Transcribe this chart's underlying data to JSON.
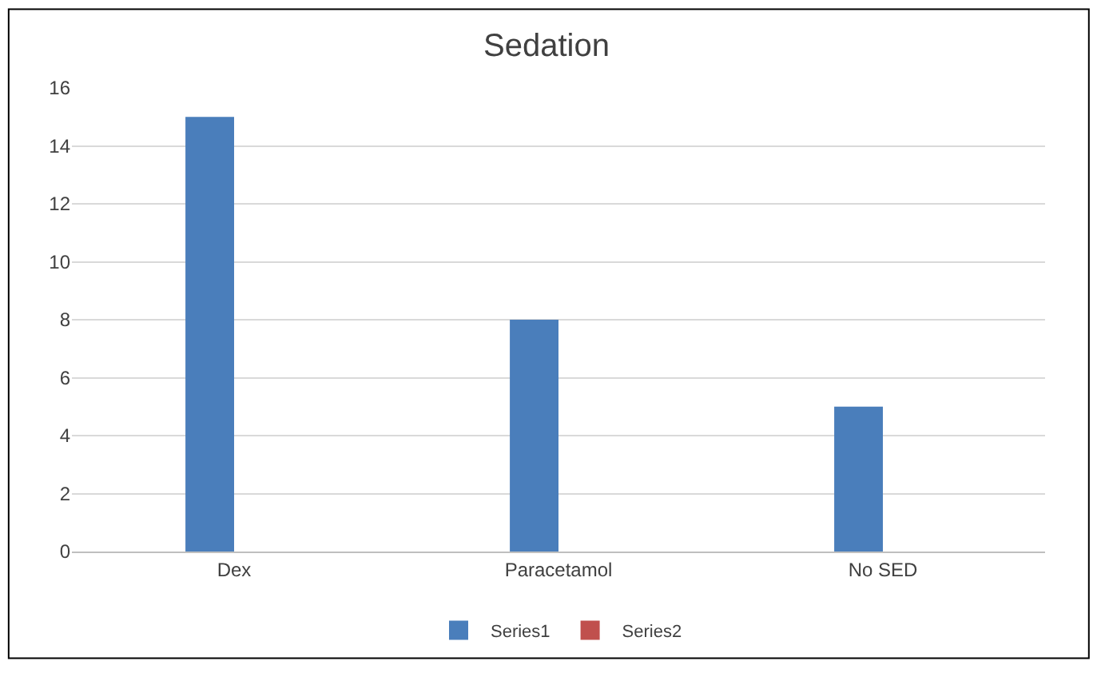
{
  "chart_data": {
    "type": "bar",
    "title": "Sedation",
    "categories": [
      "Dex",
      "Paracetamol",
      "No SED"
    ],
    "series": [
      {
        "name": "Series1",
        "color": "#4a7ebb",
        "values": [
          15,
          8,
          5
        ]
      },
      {
        "name": "Series2",
        "color": "#c0504d",
        "values": [
          null,
          null,
          null
        ]
      }
    ],
    "ylim": [
      0,
      16
    ],
    "yticks": [
      0,
      2,
      4,
      6,
      8,
      10,
      12,
      14,
      16
    ],
    "grid": "y",
    "legend": "bottom"
  }
}
